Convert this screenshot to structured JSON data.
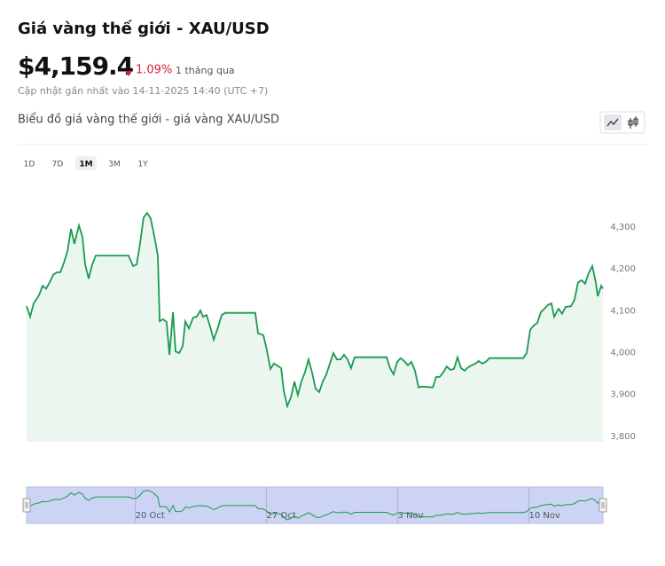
{
  "header": {
    "title": "Giá vàng thế giới - XAU/USD",
    "price": "$4,159.4",
    "change": "1.09%",
    "period": "1 tháng qua",
    "updated": "Cập nhật gần nhất vào 14-11-2025 14:40 (UTC +7)"
  },
  "subtitle": "Biểu đồ giá vàng thế giới - giá vàng XAU/USD",
  "ranges": [
    "1D",
    "7D",
    "1M",
    "3M",
    "1Y"
  ],
  "active_range": "1M",
  "chart_data": {
    "type": "line",
    "color": "#1a9a4f",
    "x": [
      0,
      0.19,
      0.38,
      0.66,
      0.85,
      1.04,
      1.23,
      1.42,
      1.61,
      1.8,
      1.99,
      2.18,
      2.37,
      2.55,
      2.79,
      2.98,
      3.12,
      3.31,
      3.5,
      3.69,
      5.44,
      5.68,
      5.87,
      6.05,
      6.24,
      6.43,
      6.62,
      6.81,
      7.0,
      7.1,
      7.28,
      7.47,
      7.62,
      7.81,
      7.95,
      8.14,
      8.33,
      8.47,
      8.66,
      8.89,
      9.08,
      9.27,
      9.41,
      9.6,
      9.79,
      9.98,
      10.17,
      10.41,
      10.6,
      12.2,
      12.35,
      12.63,
      12.82,
      13.01,
      13.2,
      13.58,
      13.72,
      13.91,
      14.1,
      14.29,
      14.47,
      14.66,
      14.85,
      15.04,
      15.23,
      15.42,
      15.61,
      15.8,
      15.99,
      16.18,
      16.37,
      16.56,
      16.75,
      16.93,
      17.12,
      17.31,
      17.5,
      19.21,
      19.39,
      19.58,
      19.77,
      19.96,
      20.15,
      20.34,
      20.53,
      20.72,
      20.91,
      21.1,
      21.67,
      21.85,
      22.04,
      22.23,
      22.42,
      22.61,
      22.8,
      22.99,
      23.18,
      23.37,
      23.56,
      23.75,
      23.94,
      24.12,
      24.31,
      24.5,
      24.69,
      26.49,
      26.68,
      26.87,
      27.06,
      27.25,
      27.44,
      27.63,
      27.81,
      28.0,
      28.15,
      28.38,
      28.57,
      28.76,
      29.04,
      29.23,
      29.42,
      29.61,
      29.8,
      29.99,
      30.18,
      30.37,
      30.47,
      30.66,
      30.75
    ],
    "values": [
      4111,
      4086,
      4118,
      4137,
      4160,
      4153,
      4168,
      4186,
      4192,
      4192,
      4215,
      4243,
      4296,
      4260,
      4304,
      4277,
      4211,
      4177,
      4211,
      4232,
      4232,
      4207,
      4211,
      4260,
      4323,
      4334,
      4321,
      4279,
      4232,
      4075,
      4080,
      4073,
      3995,
      4097,
      4003,
      3999,
      4016,
      4075,
      4058,
      4084,
      4086,
      4101,
      4086,
      4090,
      4063,
      4031,
      4055,
      4090,
      4095,
      4095,
      4046,
      4042,
      4006,
      3961,
      3974,
      3963,
      3910,
      3872,
      3893,
      3931,
      3899,
      3931,
      3953,
      3984,
      3953,
      3914,
      3906,
      3931,
      3948,
      3974,
      3999,
      3984,
      3984,
      3995,
      3984,
      3963,
      3989,
      3989,
      3963,
      3948,
      3978,
      3987,
      3980,
      3970,
      3978,
      3957,
      3917,
      3919,
      3917,
      3942,
      3942,
      3953,
      3967,
      3959,
      3961,
      3989,
      3963,
      3957,
      3965,
      3970,
      3974,
      3980,
      3974,
      3978,
      3987,
      3987,
      3999,
      4055,
      4065,
      4071,
      4097,
      4105,
      4114,
      4118,
      4086,
      4105,
      4093,
      4109,
      4111,
      4126,
      4168,
      4173,
      4165,
      4190,
      4207,
      4168,
      4135,
      4160,
      4153
    ],
    "xlim": [
      0,
      30.75
    ],
    "xticks": [
      {
        "value": 5.8,
        "label": "20 Oct"
      },
      {
        "value": 12.8,
        "label": "27 Oct"
      },
      {
        "value": 19.8,
        "label": "3 Nov"
      },
      {
        "value": 26.8,
        "label": "10 Nov"
      }
    ],
    "ylim": [
      3787,
      4387
    ],
    "yticks": [
      {
        "value": 3800,
        "label": "3,800"
      },
      {
        "value": 3900,
        "label": "3,900"
      },
      {
        "value": 4000,
        "label": "4,000"
      },
      {
        "value": 4100,
        "label": "4,100"
      },
      {
        "value": 4200,
        "label": "4,200"
      },
      {
        "value": 4300,
        "label": "4,300"
      }
    ]
  }
}
